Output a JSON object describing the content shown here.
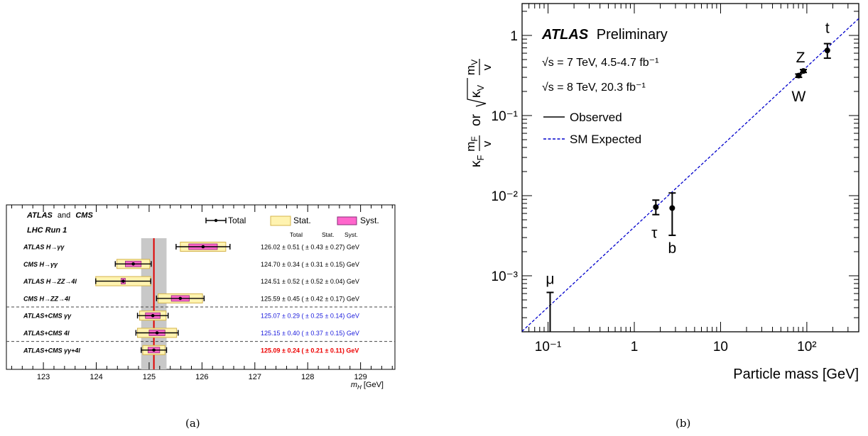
{
  "panel_labels": [
    "(a)",
    "(b)"
  ],
  "chart_data": [
    {
      "type": "scatter",
      "title": "",
      "header": {
        "experiment_a": "ATLAS",
        "connector": "and",
        "experiment_b": "CMS",
        "run": "LHC Run 1"
      },
      "legend": [
        "Total",
        "Stat.",
        "Syst."
      ],
      "column_headers": [
        "Total",
        "Stat.",
        "Syst."
      ],
      "xlabel": "m_H [GeV]",
      "xlim": [
        122.3,
        129.65
      ],
      "xticks": [
        123,
        124,
        125,
        126,
        127,
        128,
        129
      ],
      "band": {
        "center": 125.09,
        "low": 124.85,
        "high": 125.33
      },
      "colors": {
        "total": "#000000",
        "stat": "#fff3b0",
        "stat_edge": "#d4b44a",
        "syst": "#ff66cc",
        "syst_edge": "#8a2c7a",
        "line": "#e00000",
        "band": "#c8c8c8",
        "blue_text": "#1a1adc",
        "red_text": "#ee0000"
      },
      "separators_after": [
        3,
        5
      ],
      "measurements": [
        {
          "label": "ATLAS H→γγ",
          "value": 126.02,
          "total": 0.51,
          "stat": 0.43,
          "syst": 0.27,
          "text": "126.02 ± 0.51 ( ± 0.43 ± 0.27) GeV",
          "color": "#000000",
          "bold": false
        },
        {
          "label": "CMS H→γγ",
          "value": 124.7,
          "total": 0.34,
          "stat": 0.31,
          "syst": 0.15,
          "text": "124.70 ± 0.34 ( ± 0.31 ± 0.15) GeV",
          "color": "#000000",
          "bold": false
        },
        {
          "label": "ATLAS H→ZZ→4l",
          "value": 124.51,
          "total": 0.52,
          "stat": 0.52,
          "syst": 0.04,
          "text": "124.51 ± 0.52 ( ± 0.52 ± 0.04) GeV",
          "color": "#000000",
          "bold": false
        },
        {
          "label": "CMS H→ZZ→4l",
          "value": 125.59,
          "total": 0.45,
          "stat": 0.42,
          "syst": 0.17,
          "text": "125.59 ± 0.45 ( ± 0.42 ± 0.17) GeV",
          "color": "#000000",
          "bold": false
        },
        {
          "label": "ATLAS+CMS γγ",
          "value": 125.07,
          "total": 0.29,
          "stat": 0.25,
          "syst": 0.14,
          "text": "125.07 ± 0.29 ( ± 0.25 ± 0.14) GeV",
          "color": "#1a1adc",
          "bold": false
        },
        {
          "label": "ATLAS+CMS 4l",
          "value": 125.15,
          "total": 0.4,
          "stat": 0.37,
          "syst": 0.15,
          "text": "125.15 ± 0.40 ( ± 0.37 ± 0.15) GeV",
          "color": "#1a1adc",
          "bold": false
        },
        {
          "label": "ATLAS+CMS γγ+4l",
          "value": 125.09,
          "total": 0.24,
          "stat": 0.21,
          "syst": 0.11,
          "text": "125.09 ± 0.24 ( ± 0.21 ± 0.11) GeV",
          "color": "#ee0000",
          "bold": true
        }
      ]
    },
    {
      "type": "scatter",
      "title": "",
      "xlabel": "Particle mass [GeV]",
      "ylabel": "κF mF/v or √κV mV/v",
      "log_x": true,
      "log_y": true,
      "xlim": [
        0.05,
        400
      ],
      "ylim": [
        0.0002,
        2.5
      ],
      "xticks": [
        {
          "value": 0.1,
          "label": "10⁻¹"
        },
        {
          "value": 1,
          "label": "1"
        },
        {
          "value": 10,
          "label": "10"
        },
        {
          "value": 100,
          "label": "10²"
        }
      ],
      "yticks": [
        {
          "value": 0.001,
          "label": "10⁻³"
        },
        {
          "value": 0.01,
          "label": "10⁻²"
        },
        {
          "value": 0.1,
          "label": "10⁻¹"
        },
        {
          "value": 1,
          "label": "1"
        }
      ],
      "annotations": {
        "experiment": "ATLAS",
        "status": "Preliminary",
        "energy_7": "√s = 7 TeV, 4.5-4.7 fb⁻¹",
        "energy_8": "√s = 8 TeV, 20.3 fb⁻¹"
      },
      "legend": [
        {
          "name": "Observed",
          "style": "solid"
        },
        {
          "name": "SM Expected",
          "style": "dashed"
        }
      ],
      "colors": {
        "points": "#000000",
        "expected": "#0000cc"
      },
      "expected_line": {
        "x": [
          0.05,
          400
        ],
        "y": [
          0.000203,
          1.625
        ]
      },
      "points": [
        {
          "name": "μ",
          "mass": 0.1057,
          "value": null,
          "upper": 0.00062,
          "lower": 0.0002
        },
        {
          "name": "τ",
          "mass": 1.777,
          "value": 0.0072,
          "upper": 0.0088,
          "lower": 0.0058
        },
        {
          "name": "b",
          "mass": 2.75,
          "value": 0.007,
          "upper": 0.0108,
          "lower": 0.0032
        },
        {
          "name": "W",
          "mass": 80.4,
          "value": 0.315,
          "upper": 0.33,
          "lower": 0.3
        },
        {
          "name": "Z",
          "mass": 91.2,
          "value": 0.36,
          "upper": 0.375,
          "lower": 0.345
        },
        {
          "name": "t",
          "mass": 173.0,
          "value": 0.65,
          "upper": 0.79,
          "lower": 0.52
        }
      ]
    }
  ]
}
